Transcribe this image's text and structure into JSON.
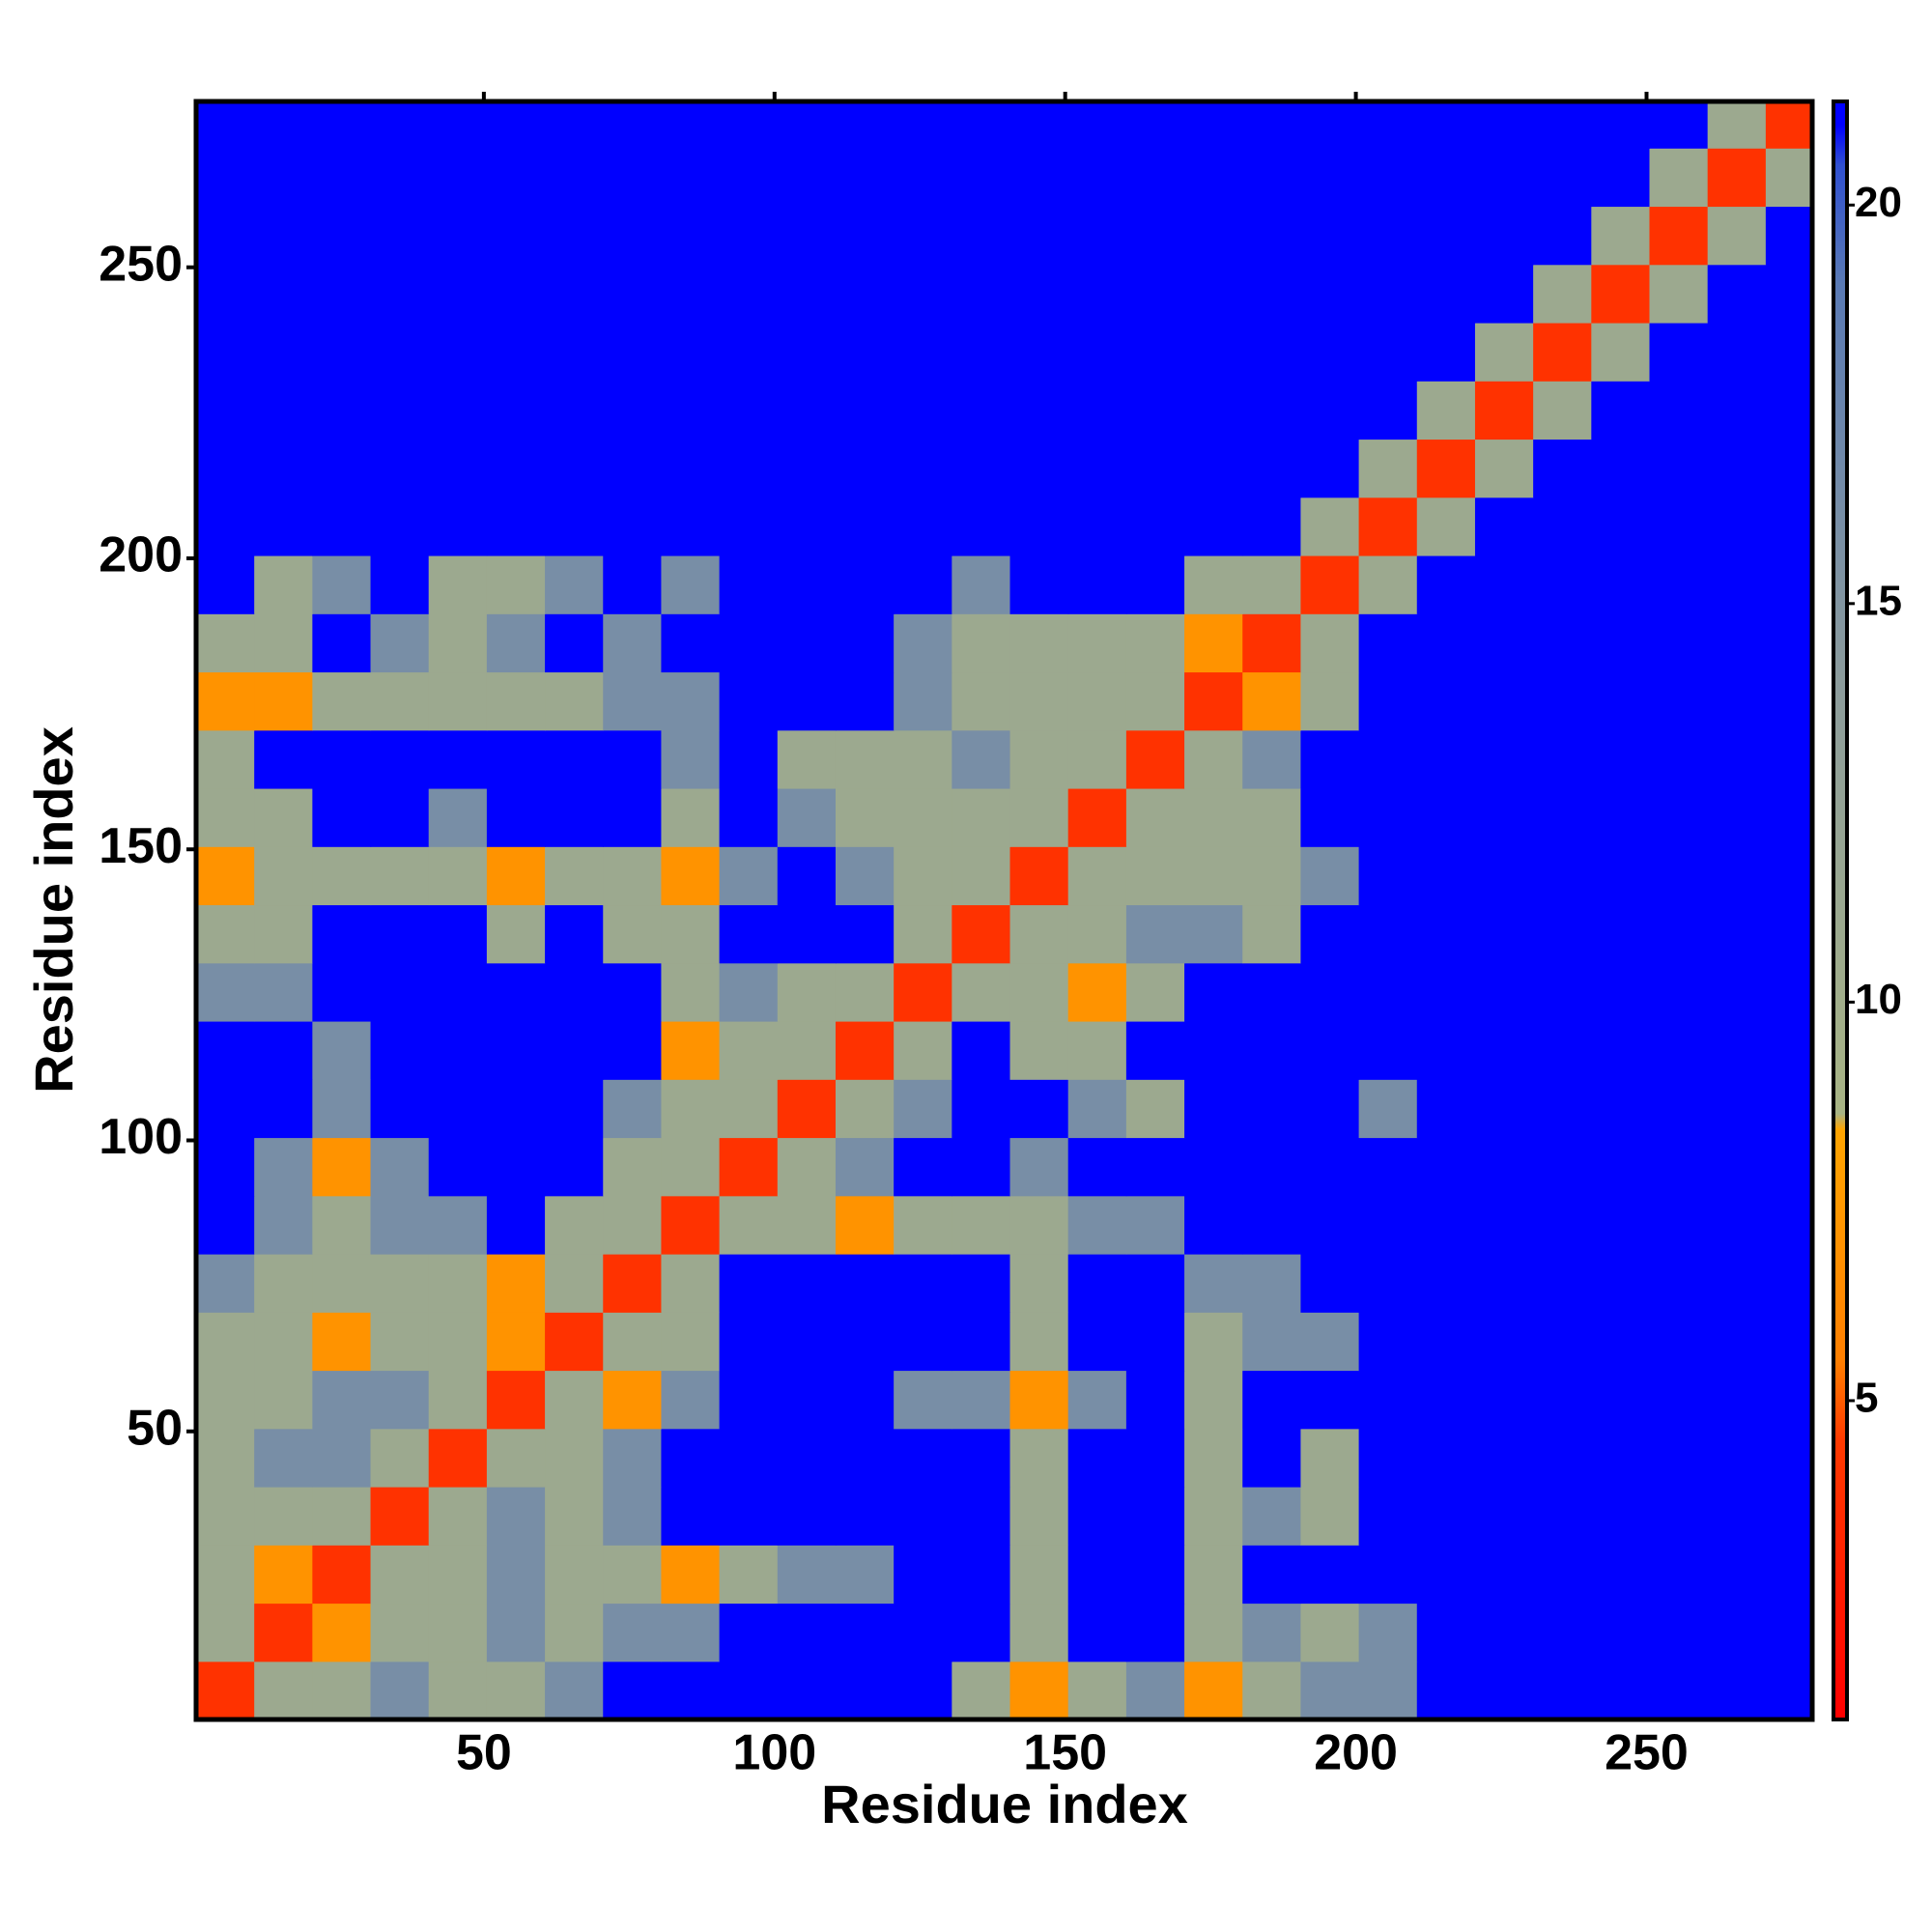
{
  "chart_data": {
    "type": "heatmap",
    "xlabel": "Residue index",
    "ylabel": "Residue index",
    "xlim": [
      0.5,
      278.5
    ],
    "ylim": [
      0.5,
      278.5
    ],
    "xticks": [
      50,
      100,
      150,
      200,
      250
    ],
    "yticks": [
      50,
      100,
      150,
      200,
      250
    ],
    "bins": [
      0.5,
      10.5,
      20.5,
      30.5,
      40.5,
      50.5,
      60.5,
      70.5,
      80.5,
      90.5,
      100.5,
      110.5,
      120.5,
      130.5,
      140.5,
      150.5,
      160.5,
      170.5,
      180.5,
      190.5,
      200.5,
      210.5,
      220.5,
      230.5,
      240.5,
      250.5,
      260.5,
      270.5,
      278.5
    ],
    "zlim": [
      1,
      21.3
    ],
    "zticks": [
      5,
      10,
      15,
      20
    ],
    "colorscale": [
      [
        1,
        "#ff0000"
      ],
      [
        4.5,
        "#ff3a00"
      ],
      [
        5.5,
        "#ff7f00"
      ],
      [
        8.4,
        "#ffa500"
      ],
      [
        8.6,
        "#a8b484"
      ],
      [
        14,
        "#8c9c9c"
      ],
      [
        19,
        "#5a7ab4"
      ],
      [
        20.5,
        "#3050d0"
      ],
      [
        21,
        "#0000ff"
      ]
    ],
    "z": [
      [
        4,
        11,
        11,
        16,
        11,
        11,
        16,
        21,
        21,
        21,
        21,
        21,
        21,
        11,
        7,
        11,
        16,
        7,
        11,
        16,
        16,
        21,
        21,
        21,
        21,
        21,
        21,
        21
      ],
      [
        11,
        4,
        7,
        11,
        11,
        16,
        11,
        16,
        16,
        21,
        21,
        21,
        21,
        21,
        11,
        21,
        21,
        11,
        16,
        11,
        16,
        21,
        21,
        21,
        21,
        21,
        21,
        21
      ],
      [
        11,
        7,
        4,
        11,
        11,
        16,
        11,
        11,
        7,
        11,
        16,
        16,
        21,
        21,
        11,
        21,
        21,
        11,
        21,
        21,
        21,
        21,
        21,
        21,
        21,
        21,
        21,
        21
      ],
      [
        11,
        11,
        11,
        4,
        11,
        16,
        11,
        16,
        21,
        21,
        21,
        21,
        21,
        21,
        11,
        21,
        21,
        11,
        16,
        11,
        21,
        21,
        21,
        21,
        21,
        21,
        21,
        21
      ],
      [
        11,
        16,
        16,
        11,
        4,
        11,
        11,
        16,
        21,
        21,
        21,
        21,
        21,
        21,
        11,
        21,
        21,
        11,
        21,
        11,
        21,
        21,
        21,
        21,
        21,
        21,
        21,
        21
      ],
      [
        11,
        11,
        16,
        16,
        11,
        4,
        11,
        7,
        16,
        21,
        21,
        21,
        16,
        16,
        7,
        16,
        21,
        11,
        21,
        21,
        21,
        21,
        21,
        21,
        21,
        21,
        21,
        21
      ],
      [
        11,
        11,
        7,
        11,
        11,
        7,
        4,
        11,
        11,
        21,
        21,
        21,
        21,
        21,
        11,
        21,
        21,
        11,
        16,
        16,
        21,
        21,
        21,
        21,
        21,
        21,
        21,
        21
      ],
      [
        16,
        11,
        11,
        11,
        11,
        7,
        11,
        4,
        11,
        21,
        21,
        21,
        21,
        21,
        11,
        21,
        21,
        16,
        16,
        21,
        21,
        21,
        21,
        21,
        21,
        21,
        21,
        21
      ],
      [
        21,
        16,
        11,
        16,
        16,
        21,
        11,
        11,
        4,
        11,
        11,
        7,
        11,
        11,
        11,
        16,
        16,
        21,
        21,
        21,
        21,
        21,
        21,
        21,
        21,
        21,
        21,
        21
      ],
      [
        21,
        16,
        7,
        16,
        21,
        21,
        21,
        11,
        11,
        4,
        11,
        16,
        21,
        21,
        16,
        21,
        21,
        21,
        21,
        21,
        21,
        21,
        21,
        21,
        21,
        21,
        21,
        21
      ],
      [
        21,
        21,
        16,
        21,
        21,
        21,
        21,
        16,
        11,
        11,
        4,
        11,
        16,
        21,
        21,
        16,
        11,
        21,
        21,
        21,
        16,
        21,
        21,
        21,
        21,
        21,
        21,
        21
      ],
      [
        21,
        21,
        16,
        21,
        21,
        21,
        21,
        21,
        7,
        11,
        11,
        4,
        11,
        21,
        11,
        11,
        21,
        21,
        21,
        21,
        21,
        21,
        21,
        21,
        21,
        21,
        21,
        21
      ],
      [
        16,
        16,
        21,
        21,
        21,
        21,
        21,
        21,
        11,
        16,
        11,
        11,
        4,
        11,
        11,
        7,
        11,
        21,
        21,
        21,
        21,
        21,
        21,
        21,
        21,
        21,
        21,
        21
      ],
      [
        11,
        11,
        21,
        21,
        21,
        11,
        21,
        11,
        11,
        21,
        21,
        21,
        11,
        4,
        11,
        11,
        16,
        16,
        11,
        21,
        21,
        21,
        21,
        21,
        21,
        21,
        21,
        21
      ],
      [
        7,
        11,
        11,
        11,
        11,
        7,
        11,
        11,
        7,
        16,
        21,
        16,
        11,
        11,
        4,
        11,
        11,
        11,
        11,
        16,
        21,
        21,
        21,
        21,
        21,
        21,
        21,
        21
      ],
      [
        11,
        11,
        21,
        21,
        16,
        21,
        21,
        21,
        11,
        21,
        16,
        11,
        11,
        11,
        11,
        4,
        11,
        11,
        11,
        21,
        21,
        21,
        21,
        21,
        21,
        21,
        21,
        21
      ],
      [
        11,
        21,
        21,
        21,
        21,
        21,
        21,
        21,
        16,
        21,
        11,
        11,
        11,
        16,
        11,
        11,
        4,
        11,
        16,
        21,
        21,
        21,
        21,
        21,
        21,
        21,
        21,
        21
      ],
      [
        7,
        7,
        11,
        11,
        11,
        11,
        11,
        16,
        16,
        21,
        21,
        21,
        16,
        11,
        11,
        11,
        11,
        4,
        7,
        11,
        21,
        21,
        21,
        21,
        21,
        21,
        21,
        21
      ],
      [
        11,
        11,
        21,
        16,
        11,
        16,
        21,
        16,
        21,
        21,
        21,
        21,
        16,
        11,
        11,
        11,
        11,
        7,
        4,
        11,
        21,
        21,
        21,
        21,
        21,
        21,
        21,
        21
      ],
      [
        21,
        11,
        16,
        21,
        11,
        11,
        16,
        21,
        16,
        21,
        21,
        21,
        21,
        16,
        21,
        21,
        21,
        11,
        11,
        4,
        11,
        21,
        21,
        21,
        21,
        21,
        21,
        21
      ],
      [
        21,
        21,
        21,
        21,
        21,
        21,
        21,
        21,
        21,
        21,
        21,
        21,
        21,
        21,
        21,
        21,
        21,
        21,
        21,
        11,
        4,
        11,
        21,
        21,
        21,
        21,
        21,
        21
      ],
      [
        21,
        21,
        21,
        21,
        21,
        21,
        21,
        21,
        21,
        21,
        21,
        21,
        21,
        21,
        21,
        21,
        21,
        21,
        21,
        21,
        11,
        4,
        11,
        21,
        21,
        21,
        21,
        21
      ],
      [
        21,
        21,
        21,
        21,
        21,
        21,
        21,
        21,
        21,
        21,
        21,
        21,
        21,
        21,
        21,
        21,
        21,
        21,
        21,
        21,
        21,
        11,
        4,
        11,
        21,
        21,
        21,
        21
      ],
      [
        21,
        21,
        21,
        21,
        21,
        21,
        21,
        21,
        21,
        21,
        21,
        21,
        21,
        21,
        21,
        21,
        21,
        21,
        21,
        21,
        21,
        21,
        11,
        4,
        11,
        21,
        21,
        21
      ],
      [
        21,
        21,
        21,
        21,
        21,
        21,
        21,
        21,
        21,
        21,
        21,
        21,
        21,
        21,
        21,
        21,
        21,
        21,
        21,
        21,
        21,
        21,
        21,
        11,
        4,
        11,
        21,
        21
      ],
      [
        21,
        21,
        21,
        21,
        21,
        21,
        21,
        21,
        21,
        21,
        21,
        21,
        21,
        21,
        21,
        21,
        21,
        21,
        21,
        21,
        21,
        21,
        21,
        21,
        11,
        4,
        11,
        21
      ],
      [
        21,
        21,
        21,
        21,
        21,
        21,
        21,
        21,
        21,
        21,
        21,
        21,
        21,
        21,
        21,
        21,
        21,
        21,
        21,
        21,
        21,
        21,
        21,
        21,
        21,
        11,
        4,
        11
      ],
      [
        21,
        21,
        21,
        21,
        21,
        21,
        21,
        21,
        21,
        21,
        21,
        21,
        21,
        21,
        21,
        21,
        21,
        21,
        21,
        21,
        21,
        21,
        21,
        21,
        21,
        21,
        11,
        4
      ]
    ]
  }
}
